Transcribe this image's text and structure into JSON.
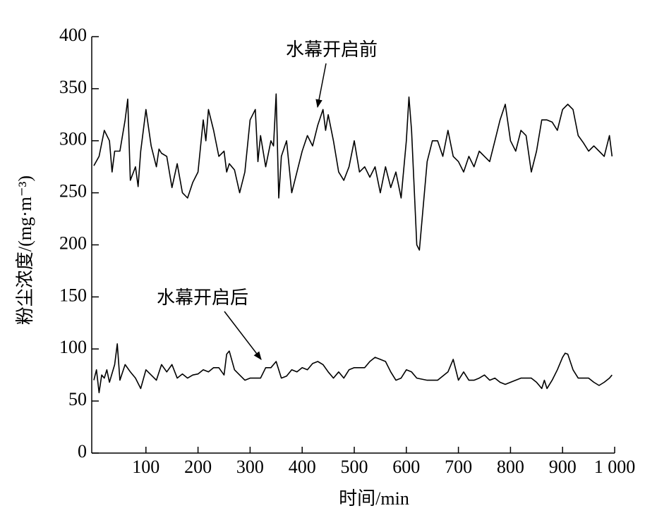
{
  "chart_data": {
    "type": "line",
    "xlabel": "时间/min",
    "ylabel": "粉尘浓度/(mg·m⁻³)",
    "xlim": [
      0,
      1000
    ],
    "ylim": [
      0,
      400
    ],
    "xticks": [
      100,
      200,
      300,
      400,
      500,
      600,
      700,
      800,
      900,
      {
        "value": 1000,
        "label": "1 000"
      }
    ],
    "yticks": [
      0,
      50,
      100,
      150,
      200,
      250,
      300,
      350,
      400
    ],
    "annotations": [
      "水幕开启前",
      "水幕开启后"
    ],
    "series": [
      {
        "name": "水幕开启前",
        "color": "#000000",
        "x": [
          0,
          10,
          20,
          30,
          35,
          40,
          50,
          60,
          65,
          70,
          80,
          85,
          90,
          100,
          110,
          120,
          125,
          130,
          140,
          150,
          160,
          170,
          180,
          190,
          200,
          210,
          215,
          220,
          230,
          240,
          250,
          255,
          260,
          270,
          280,
          290,
          300,
          310,
          315,
          320,
          330,
          340,
          345,
          350,
          355,
          360,
          370,
          380,
          390,
          400,
          410,
          420,
          430,
          440,
          445,
          450,
          460,
          470,
          480,
          490,
          500,
          510,
          520,
          530,
          540,
          550,
          560,
          570,
          580,
          590,
          600,
          605,
          610,
          620,
          625,
          640,
          650,
          660,
          670,
          680,
          690,
          700,
          710,
          720,
          730,
          740,
          750,
          760,
          770,
          780,
          790,
          800,
          810,
          820,
          830,
          840,
          850,
          860,
          870,
          880,
          890,
          900,
          910,
          920,
          930,
          940,
          950,
          960,
          970,
          980,
          990,
          995
        ],
        "values": [
          276,
          285,
          310,
          300,
          270,
          290,
          290,
          320,
          340,
          262,
          275,
          256,
          290,
          330,
          295,
          275,
          292,
          288,
          285,
          255,
          278,
          250,
          245,
          260,
          270,
          320,
          300,
          330,
          310,
          285,
          290,
          270,
          278,
          272,
          250,
          270,
          320,
          330,
          280,
          305,
          275,
          300,
          295,
          345,
          245,
          285,
          300,
          250,
          270,
          290,
          305,
          295,
          315,
          330,
          310,
          325,
          300,
          270,
          262,
          275,
          300,
          270,
          275,
          265,
          275,
          250,
          275,
          255,
          270,
          245,
          300,
          342,
          310,
          200,
          195,
          280,
          300,
          300,
          285,
          310,
          285,
          280,
          270,
          285,
          275,
          290,
          285,
          280,
          300,
          320,
          335,
          300,
          290,
          310,
          305,
          270,
          290,
          320,
          320,
          318,
          310,
          330,
          335,
          330,
          305,
          298,
          290,
          295,
          290,
          285,
          305,
          285
        ]
      },
      {
        "name": "水幕开启后",
        "color": "#000000",
        "x": [
          0,
          5,
          10,
          15,
          20,
          25,
          30,
          40,
          45,
          50,
          60,
          70,
          80,
          90,
          100,
          110,
          120,
          130,
          140,
          150,
          160,
          170,
          180,
          190,
          200,
          210,
          220,
          230,
          240,
          250,
          255,
          260,
          270,
          280,
          290,
          300,
          310,
          320,
          330,
          340,
          350,
          360,
          370,
          380,
          390,
          400,
          410,
          420,
          430,
          440,
          450,
          460,
          470,
          480,
          490,
          500,
          510,
          520,
          530,
          540,
          550,
          560,
          570,
          580,
          590,
          600,
          610,
          620,
          640,
          660,
          680,
          690,
          700,
          710,
          720,
          730,
          740,
          750,
          760,
          770,
          780,
          790,
          800,
          820,
          840,
          850,
          860,
          865,
          870,
          880,
          890,
          900,
          905,
          910,
          920,
          930,
          940,
          950,
          960,
          970,
          980,
          990,
          995
        ],
        "values": [
          70,
          80,
          58,
          75,
          72,
          80,
          68,
          85,
          105,
          70,
          85,
          78,
          72,
          62,
          80,
          75,
          70,
          85,
          78,
          85,
          72,
          76,
          72,
          75,
          76,
          80,
          78,
          82,
          82,
          75,
          95,
          98,
          80,
          75,
          70,
          72,
          72,
          72,
          82,
          82,
          88,
          72,
          74,
          80,
          78,
          82,
          80,
          86,
          88,
          85,
          78,
          72,
          78,
          72,
          80,
          82,
          82,
          82,
          88,
          92,
          90,
          88,
          78,
          70,
          72,
          80,
          78,
          72,
          70,
          70,
          78,
          90,
          70,
          78,
          70,
          70,
          72,
          75,
          70,
          72,
          68,
          66,
          68,
          72,
          72,
          68,
          62,
          70,
          62,
          70,
          80,
          92,
          96,
          95,
          80,
          72,
          72,
          72,
          68,
          65,
          68,
          72,
          75
        ]
      }
    ]
  }
}
